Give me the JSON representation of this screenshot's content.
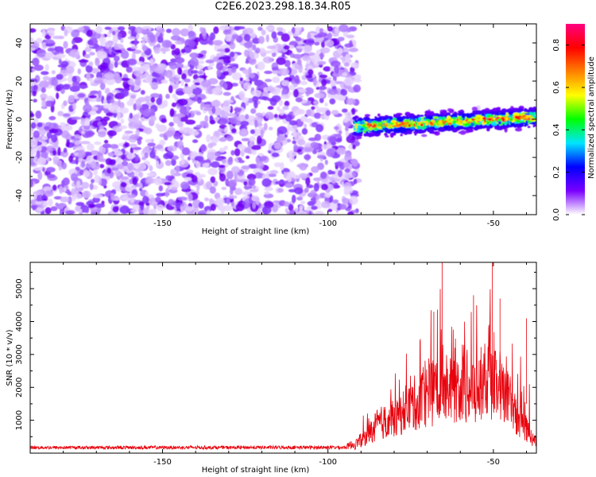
{
  "title": "C2E6.2023.298.18.34.R05",
  "chart_data": [
    {
      "type": "heatmap",
      "xlabel": "Height of straight line (km)",
      "ylabel": "Frequency (Hz)",
      "xlim": [
        -190,
        -37
      ],
      "ylim": [
        -50,
        50
      ],
      "xticks": [
        -150,
        -100,
        -50
      ],
      "yticks": [
        -40,
        -20,
        0,
        20,
        40
      ],
      "colorbar": {
        "label": "Normalized spectral amplitude",
        "range": [
          0,
          0.9
        ],
        "ticks": [
          "0.0",
          "0.2",
          "0.4",
          "0.6",
          "0.8"
        ],
        "colormap": [
          "#ffffff",
          "#7a00ff",
          "#0000ff",
          "#00e5ff",
          "#00ff00",
          "#ffff00",
          "#ff8000",
          "#ff0000",
          "#ff0080"
        ]
      },
      "features": [
        {
          "name": "noise",
          "x_range": [
            -190,
            -91
          ],
          "freq_range": [
            -50,
            48
          ],
          "amplitude": 0.08
        },
        {
          "name": "signal band",
          "x_range": [
            -92,
            -37
          ],
          "freq_start": -4,
          "freq_end": 1,
          "halfwidth": 3,
          "peak_amplitude": 0.85
        }
      ]
    },
    {
      "type": "line",
      "xlabel": "Height of straight line (km)",
      "ylabel": "SNR (10 * v/v)",
      "xlim": [
        -190,
        -37
      ],
      "ylim": [
        0,
        5800
      ],
      "xticks": [
        -150,
        -100,
        -50
      ],
      "yticks": [
        1000,
        2000,
        3000,
        4000,
        5000
      ],
      "color": "#e8000b",
      "profile": {
        "x": [
          -190,
          -95,
          -92,
          -88,
          -85,
          -80,
          -75,
          -70,
          -65,
          -60,
          -55,
          -52,
          -50,
          -45,
          -42,
          -40,
          -38,
          -37
        ],
        "base": [
          150,
          160,
          300,
          700,
          1100,
          1300,
          1800,
          2200,
          2500,
          2600,
          2400,
          2500,
          2600,
          1900,
          1300,
          900,
          500,
          400
        ],
        "peak": [
          220,
          230,
          450,
          1400,
          2200,
          2400,
          3500,
          4300,
          5800,
          5000,
          4300,
          4800,
          5800,
          4200,
          3800,
          4100,
          900,
          700
        ]
      }
    }
  ]
}
